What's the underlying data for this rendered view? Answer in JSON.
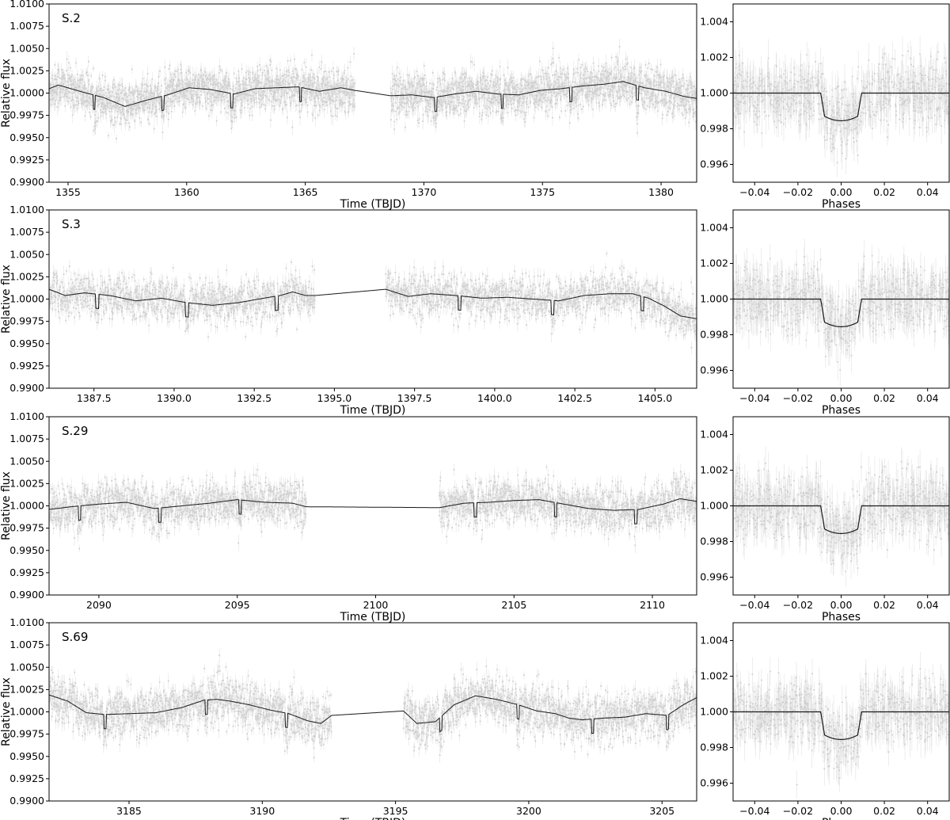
{
  "chart_data": [
    {
      "type": "scatter",
      "panel": "lightcurve",
      "title": "S.2",
      "xlabel": "Time (TBJD)",
      "ylabel": "Relative flux",
      "xlim": [
        1354.2,
        1381.5
      ],
      "ylim": [
        0.99,
        1.01
      ],
      "xticks": [
        1355,
        1360,
        1365,
        1370,
        1375,
        1380
      ],
      "xtick_labels": [
        "1355",
        "1360",
        "1365",
        "1370",
        "1375",
        "1380"
      ],
      "yticks": [
        0.99,
        0.9925,
        0.995,
        0.9975,
        1.0,
        1.0025,
        1.005,
        1.0075,
        1.01
      ],
      "ytick_labels": [
        "0.9900",
        "0.9925",
        "0.9950",
        "0.9975",
        "1.0000",
        "1.0025",
        "1.0050",
        "1.0075",
        "1.0100"
      ],
      "segments": [
        [
          1354.2,
          1367.1
        ],
        [
          1368.6,
          1381.5
        ]
      ],
      "transits": [
        1356.1,
        1359.0,
        1361.9,
        1364.8,
        1370.5,
        1373.3,
        1376.2,
        1379.0
      ],
      "trend_x": [
        1354.2,
        1354.6,
        1355.5,
        1356.5,
        1357.4,
        1358.3,
        1359.2,
        1360.1,
        1361.0,
        1362.0,
        1362.9,
        1363.8,
        1364.7,
        1365.6,
        1366.5,
        1367.1,
        1368.6,
        1369.5,
        1370.4,
        1371.3,
        1372.2,
        1373.1,
        1374.0,
        1374.9,
        1375.8,
        1376.7,
        1377.6,
        1378.4,
        1379.3,
        1380.2,
        1381.0,
        1381.5
      ],
      "trend_y": [
        1.0005,
        1.0009,
        1.0002,
        0.9995,
        0.9985,
        0.9992,
        0.9998,
        1.0006,
        1.0004,
        0.9999,
        1.0005,
        1.0006,
        1.0007,
        1.0002,
        1.0006,
        1.0003,
        0.9997,
        0.9998,
        0.9995,
        0.9999,
        1.0002,
        0.9999,
        0.9998,
        1.0003,
        1.0005,
        1.0008,
        1.001,
        1.0013,
        1.0006,
        1.0002,
        0.9996,
        0.9994
      ],
      "scatter_sigma": 0.0012
    },
    {
      "type": "scatter",
      "panel": "phase",
      "xlabel": "Phases",
      "xlim": [
        -0.05,
        0.05
      ],
      "ylim": [
        0.995,
        1.005
      ],
      "xticks": [
        -0.04,
        -0.02,
        0.0,
        0.02,
        0.04
      ],
      "xtick_labels": [
        "−0.04",
        "−0.02",
        "0.00",
        "0.02",
        "0.04"
      ],
      "yticks": [
        0.996,
        0.998,
        1.0,
        1.002,
        1.004
      ],
      "ytick_labels": [
        "0.996",
        "0.998",
        "1.000",
        "1.002",
        "1.004"
      ],
      "transit_depth": 0.00155,
      "transit_half_width": 0.0095
    },
    {
      "type": "scatter",
      "panel": "lightcurve",
      "title": "S.3",
      "xlabel": "Time (TBJD)",
      "ylabel": "Relative flux",
      "xlim": [
        1386.1,
        1406.3
      ],
      "ylim": [
        0.99,
        1.01
      ],
      "xticks": [
        1387.5,
        1390.0,
        1392.5,
        1395.0,
        1397.5,
        1400.0,
        1402.5,
        1405.0
      ],
      "xtick_labels": [
        "1387.5",
        "1390.0",
        "1392.5",
        "1395.0",
        "1397.5",
        "1400.0",
        "1402.5",
        "1405.0"
      ],
      "yticks": [
        0.99,
        0.9925,
        0.995,
        0.9975,
        1.0,
        1.0025,
        1.005,
        1.0075,
        1.01
      ],
      "ytick_labels": [
        "0.9900",
        "0.9925",
        "0.9950",
        "0.9975",
        "1.0000",
        "1.0025",
        "1.0050",
        "1.0075",
        "1.0100"
      ],
      "segments": [
        [
          1386.1,
          1394.4
        ],
        [
          1396.6,
          1406.3
        ]
      ],
      "transits": [
        1387.6,
        1390.4,
        1393.2,
        1398.9,
        1401.8,
        1404.6
      ],
      "trend_x": [
        1386.1,
        1386.6,
        1387.2,
        1388.0,
        1388.8,
        1389.6,
        1390.4,
        1391.2,
        1392.0,
        1392.8,
        1393.3,
        1393.7,
        1394.1,
        1394.4,
        1396.6,
        1397.3,
        1398.0,
        1398.8,
        1399.6,
        1400.4,
        1401.2,
        1402.0,
        1402.8,
        1403.6,
        1404.3,
        1404.8,
        1405.3,
        1405.8,
        1406.3
      ],
      "trend_y": [
        1.0011,
        1.0004,
        1.0007,
        1.0004,
        0.9998,
        1.0001,
        0.9996,
        0.9993,
        0.9996,
        1.0001,
        1.0004,
        1.0008,
        1.0004,
        1.0004,
        1.0011,
        1.0003,
        1.0006,
        1.0004,
        1.0001,
        1.0002,
        1.0,
        0.9998,
        1.0004,
        1.0006,
        1.0006,
        1.0001,
        0.9992,
        0.9981,
        0.9978
      ],
      "scatter_sigma": 0.0012
    },
    {
      "type": "scatter",
      "panel": "phase",
      "xlabel": "Phases",
      "xlim": [
        -0.05,
        0.05
      ],
      "ylim": [
        0.995,
        1.005
      ],
      "xticks": [
        -0.04,
        -0.02,
        0.0,
        0.02,
        0.04
      ],
      "xtick_labels": [
        "−0.04",
        "−0.02",
        "0.00",
        "0.02",
        "0.04"
      ],
      "yticks": [
        0.996,
        0.998,
        1.0,
        1.002,
        1.004
      ],
      "ytick_labels": [
        "0.996",
        "0.998",
        "1.000",
        "1.002",
        "1.004"
      ],
      "transit_depth": 0.00155,
      "transit_half_width": 0.0095
    },
    {
      "type": "scatter",
      "panel": "lightcurve",
      "title": "S.29",
      "xlabel": "Time (TBJD)",
      "ylabel": "Relative flux",
      "xlim": [
        2088.2,
        2111.6
      ],
      "ylim": [
        0.99,
        1.01
      ],
      "xticks": [
        2090,
        2095,
        2100,
        2105,
        2110
      ],
      "xtick_labels": [
        "2090",
        "2095",
        "2100",
        "2105",
        "2110"
      ],
      "yticks": [
        0.99,
        0.9925,
        0.995,
        0.9975,
        1.0,
        1.0025,
        1.005,
        1.0075,
        1.01
      ],
      "ytick_labels": [
        "0.9900",
        "0.9925",
        "0.9950",
        "0.9975",
        "1.0000",
        "1.0025",
        "1.0050",
        "1.0075",
        "1.0100"
      ],
      "segments": [
        [
          2088.2,
          2097.5
        ],
        [
          2102.3,
          2111.6
        ]
      ],
      "transits": [
        2089.3,
        2092.2,
        2095.1,
        2103.6,
        2106.5,
        2109.4
      ],
      "trend_x": [
        2088.2,
        2089.0,
        2090.0,
        2091.0,
        2092.0,
        2093.0,
        2094.0,
        2095.0,
        2096.0,
        2097.0,
        2097.5,
        2102.3,
        2103.2,
        2104.1,
        2105.0,
        2105.9,
        2106.8,
        2107.7,
        2108.6,
        2109.5,
        2110.4,
        2111.0,
        2111.6
      ],
      "trend_y": [
        0.9996,
        0.9999,
        1.0002,
        1.0004,
        0.9997,
        1.0,
        1.0003,
        1.0007,
        1.0004,
        1.0003,
        0.9999,
        0.9998,
        1.0003,
        1.0004,
        1.0006,
        1.0007,
        1.0002,
        0.9997,
        0.9995,
        0.9996,
        1.0002,
        1.0008,
        1.0005
      ],
      "scatter_sigma": 0.0012
    },
    {
      "type": "scatter",
      "panel": "phase",
      "xlabel": "Phases",
      "xlim": [
        -0.05,
        0.05
      ],
      "ylim": [
        0.995,
        1.005
      ],
      "xticks": [
        -0.04,
        -0.02,
        0.0,
        0.02,
        0.04
      ],
      "xtick_labels": [
        "−0.04",
        "−0.02",
        "0.00",
        "0.02",
        "0.04"
      ],
      "yticks": [
        0.996,
        0.998,
        1.0,
        1.002,
        1.004
      ],
      "ytick_labels": [
        "0.996",
        "0.998",
        "1.000",
        "1.002",
        "1.004"
      ],
      "transit_depth": 0.00155,
      "transit_half_width": 0.0095
    },
    {
      "type": "scatter",
      "panel": "lightcurve",
      "title": "S.69",
      "xlabel": "Time (TBJD)",
      "ylabel": "Relative flux",
      "xlim": [
        3182.0,
        3206.3
      ],
      "ylim": [
        0.99,
        1.01
      ],
      "xticks": [
        3185,
        3190,
        3195,
        3200,
        3205
      ],
      "xtick_labels": [
        "3185",
        "3190",
        "3195",
        "3200",
        "3205"
      ],
      "yticks": [
        0.99,
        0.9925,
        0.995,
        0.9975,
        1.0,
        1.0025,
        1.005,
        1.0075,
        1.01
      ],
      "ytick_labels": [
        "0.9900",
        "0.9925",
        "0.9950",
        "0.9975",
        "1.0000",
        "1.0025",
        "1.0050",
        "1.0075",
        "1.0100"
      ],
      "segments": [
        [
          3182.0,
          3192.6
        ],
        [
          3195.3,
          3206.3
        ]
      ],
      "transits": [
        3184.1,
        3187.9,
        3190.9,
        3196.7,
        3199.6,
        3202.4,
        3205.2
      ],
      "trend_x": [
        3182.0,
        3182.7,
        3183.4,
        3184.1,
        3185.0,
        3186.0,
        3187.0,
        3187.8,
        3188.3,
        3188.8,
        3189.5,
        3190.3,
        3191.0,
        3191.7,
        3192.2,
        3192.6,
        3195.3,
        3195.8,
        3196.5,
        3197.2,
        3198.0,
        3198.8,
        3199.6,
        3200.3,
        3201.0,
        3201.5,
        3202.0,
        3202.8,
        3203.6,
        3204.4,
        3205.2,
        3205.8,
        3206.3
      ],
      "trend_y": [
        1.0019,
        1.0012,
        0.9999,
        0.9997,
        0.9998,
        0.9999,
        1.0005,
        1.0013,
        1.0014,
        1.0012,
        1.0008,
        1.0002,
        0.9998,
        0.999,
        0.9987,
        0.9996,
        1.0001,
        0.9987,
        0.9989,
        1.0008,
        1.0018,
        1.0014,
        1.0008,
        1.0001,
        0.9998,
        0.9993,
        0.9991,
        0.9993,
        0.9994,
        0.9998,
        0.9996,
        1.0008,
        1.0016
      ],
      "scatter_sigma": 0.0013
    },
    {
      "type": "scatter",
      "panel": "phase",
      "xlabel": "Phases",
      "xlim": [
        -0.05,
        0.05
      ],
      "ylim": [
        0.995,
        1.005
      ],
      "xticks": [
        -0.04,
        -0.02,
        0.0,
        0.02,
        0.04
      ],
      "xtick_labels": [
        "−0.04",
        "−0.02",
        "0.00",
        "0.02",
        "0.04"
      ],
      "yticks": [
        0.996,
        0.998,
        1.0,
        1.002,
        1.004
      ],
      "ytick_labels": [
        "0.996",
        "0.998",
        "1.000",
        "1.002",
        "1.004"
      ],
      "transit_depth": 0.00155,
      "transit_half_width": 0.0095
    }
  ],
  "colors": {
    "data_points": "#cfcfcf",
    "error_bars": "#e2e2e2",
    "model_line": "#1a1a1a",
    "axes": "#000000"
  }
}
